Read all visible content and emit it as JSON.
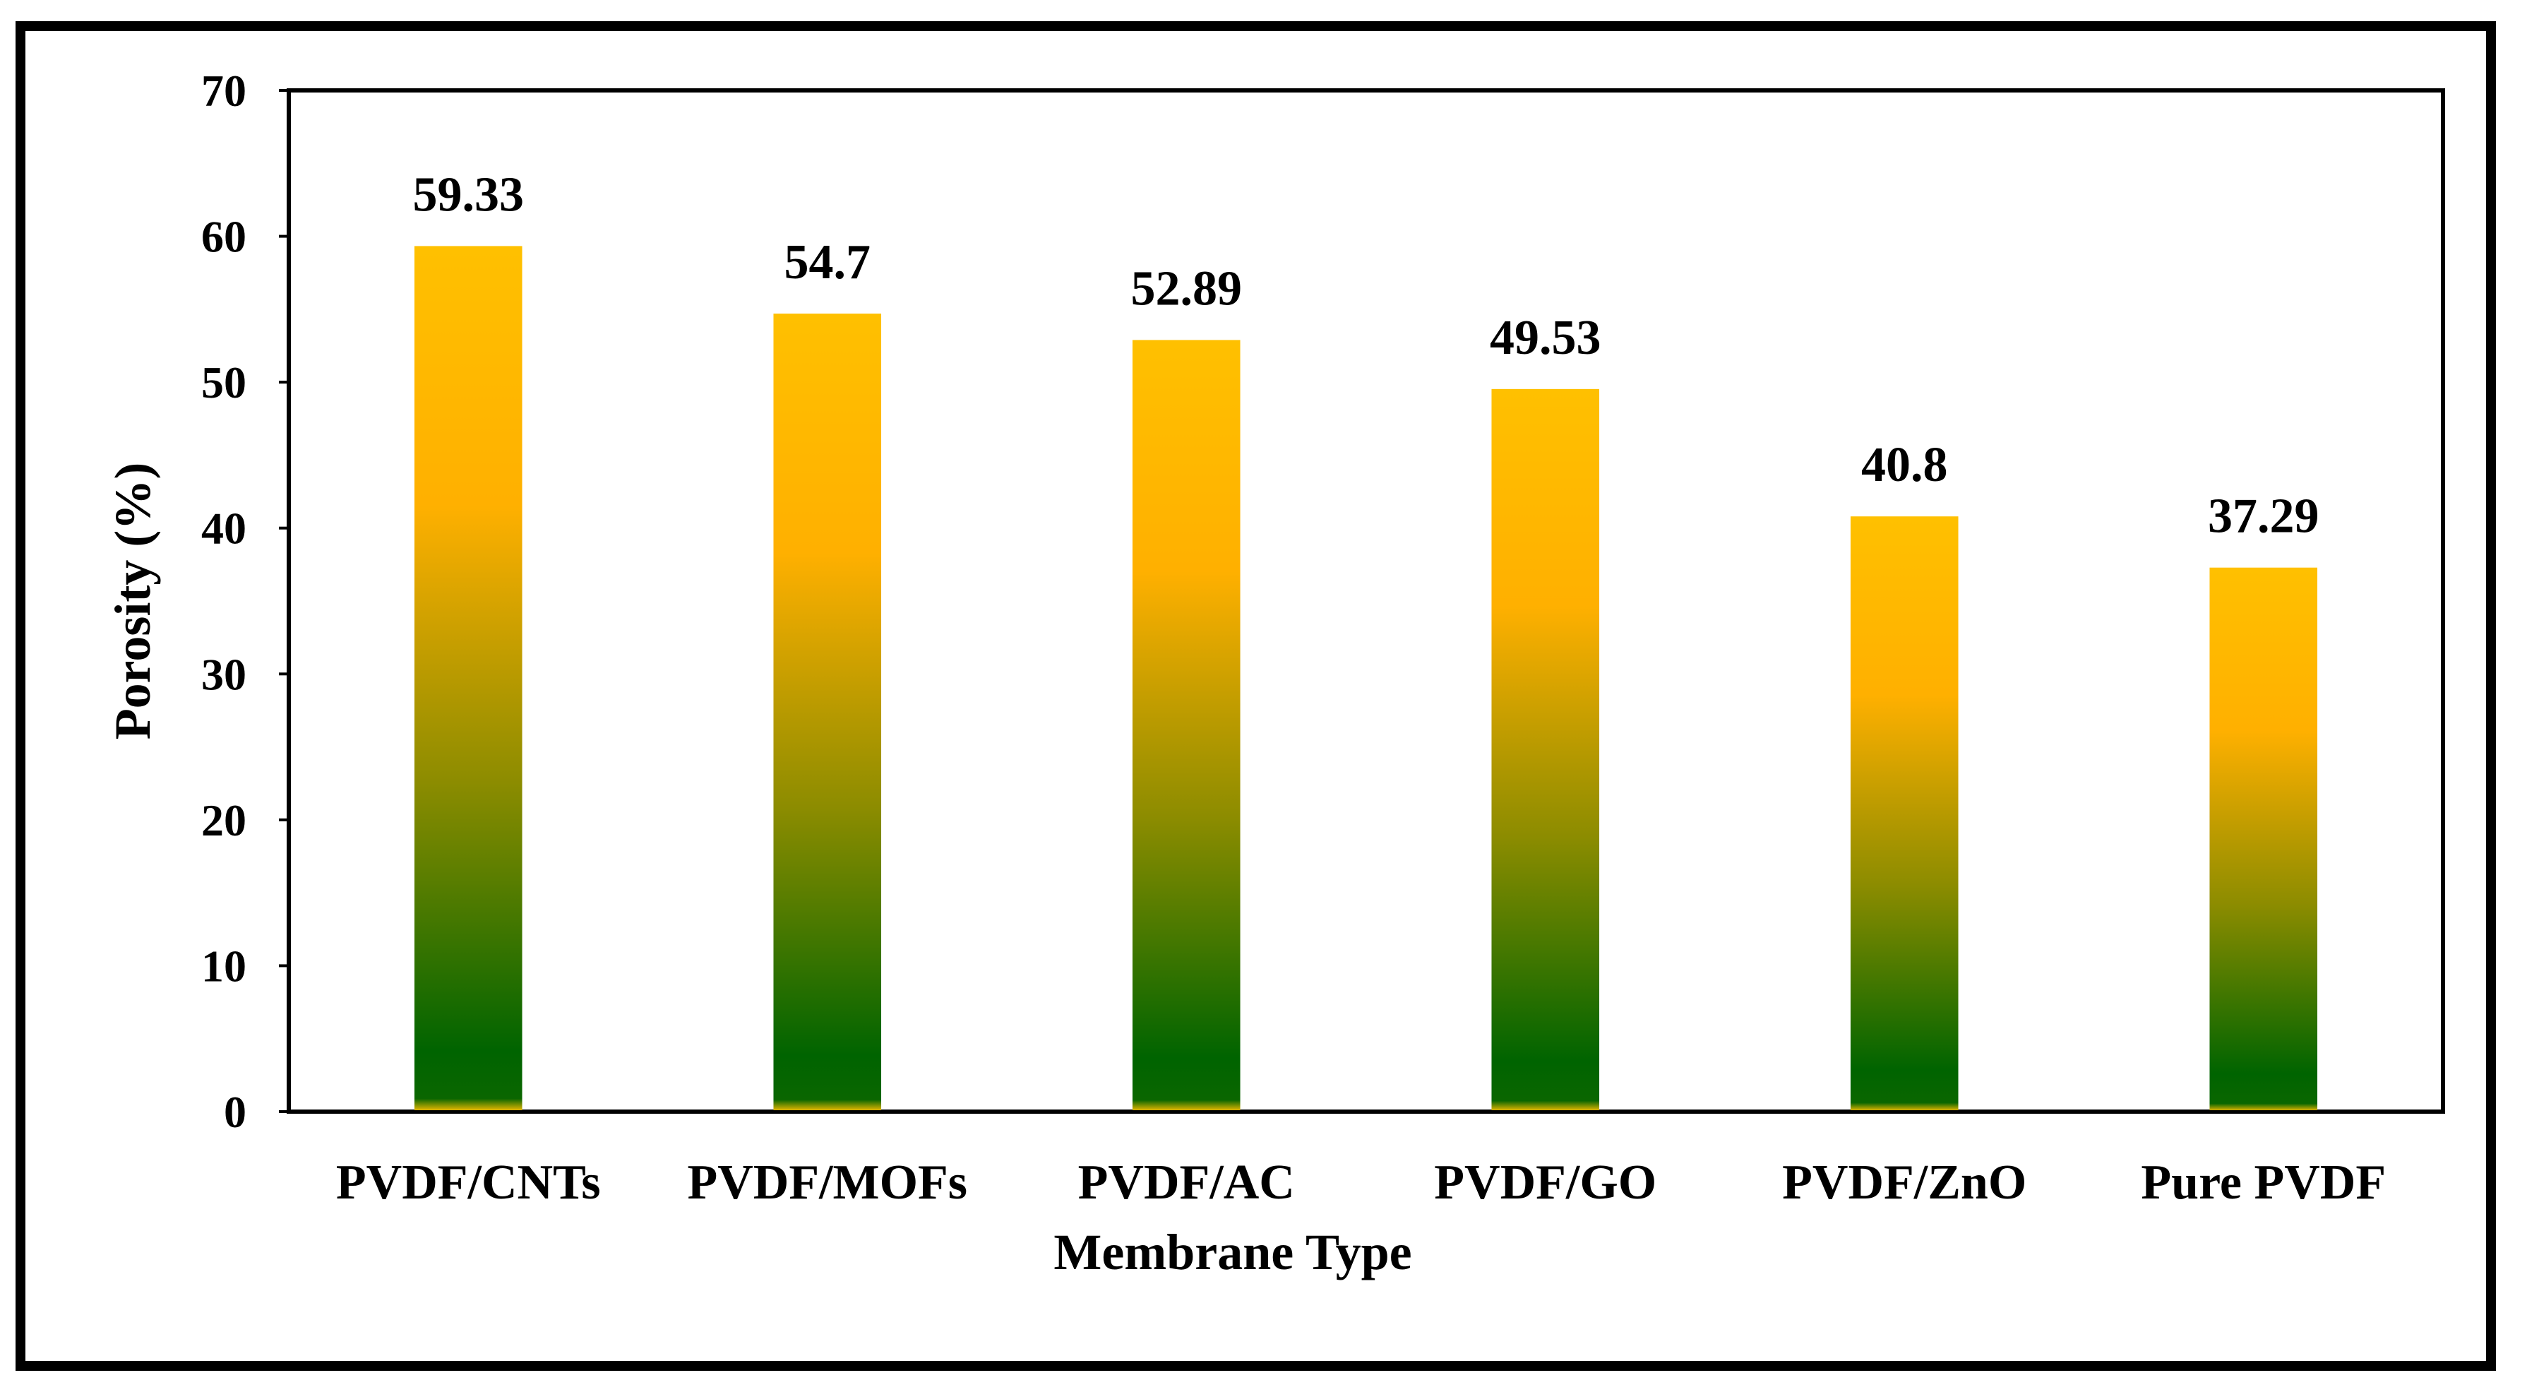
{
  "chart_data": {
    "type": "bar",
    "title": "",
    "xlabel": "Membrane Type",
    "ylabel": "Porosity (%)",
    "categories": [
      "PVDF/CNTs",
      "PVDF/MOFs",
      "PVDF/AC",
      "PVDF/GO",
      "PVDF/ZnO",
      "Pure PVDF"
    ],
    "values": [
      59.33,
      54.7,
      52.89,
      49.53,
      40.8,
      37.29
    ],
    "data_labels": [
      "59.33",
      "54.7",
      "52.89",
      "49.53",
      "40.8",
      "37.29"
    ],
    "ylim": [
      0,
      70
    ],
    "yticks": [
      0,
      10,
      20,
      30,
      40,
      50,
      60,
      70
    ],
    "grid": false,
    "legend": "none",
    "colors": {
      "bar_top": "#FFC000",
      "bar_mid": "#FFB000",
      "bar_bottom": "#006400",
      "axis": "#000000",
      "frame": "#000000"
    }
  }
}
